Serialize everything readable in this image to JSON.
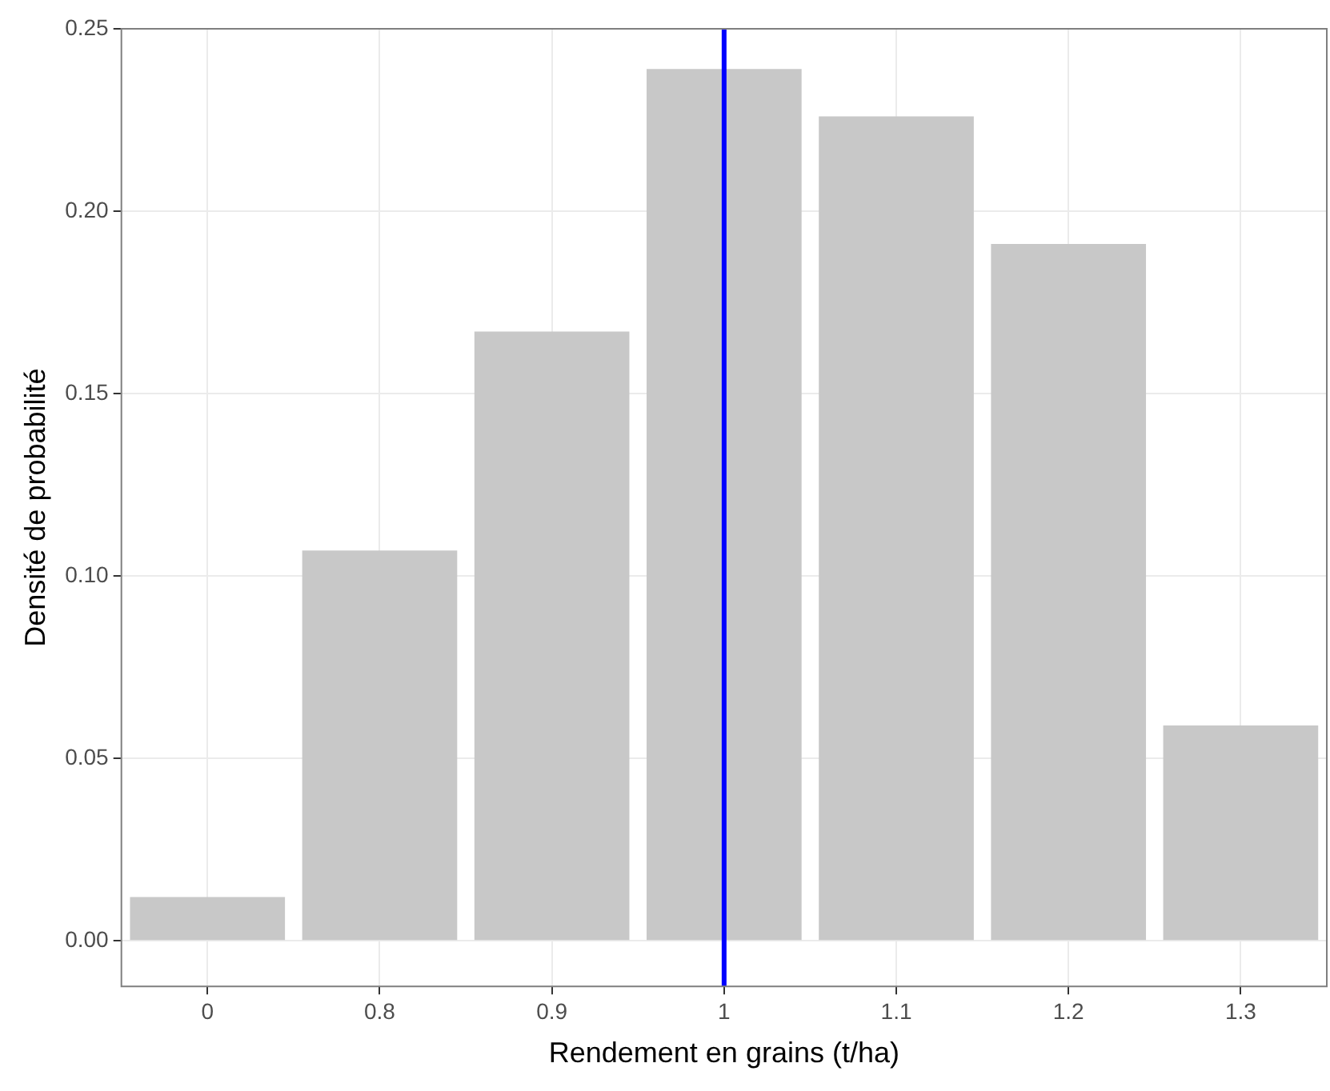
{
  "chart_data": {
    "type": "bar",
    "xlabel": "Rendement en grains (t/ha)",
    "ylabel": "Densité de probabilité",
    "categories": [
      "0",
      "0.8",
      "0.9",
      "1",
      "1.1",
      "1.2",
      "1.3"
    ],
    "values": [
      0.012,
      0.107,
      0.167,
      0.239,
      0.226,
      0.191,
      0.059
    ],
    "color": "#c8c8c8",
    "ylim": [
      -0.0125,
      0.25
    ],
    "yticks": [
      {
        "value": 0,
        "label": "0.00"
      },
      {
        "value": 0.05,
        "label": "0.05"
      },
      {
        "value": 0.1,
        "label": "0.10"
      },
      {
        "value": 0.15,
        "label": "0.15"
      },
      {
        "value": 0.2,
        "label": "0.20"
      },
      {
        "value": 0.25,
        "label": "0.25"
      }
    ],
    "grid": true,
    "legend": false,
    "ref_lines": [
      {
        "axis": "x",
        "value": "1",
        "color": "#0000ff"
      }
    ]
  }
}
